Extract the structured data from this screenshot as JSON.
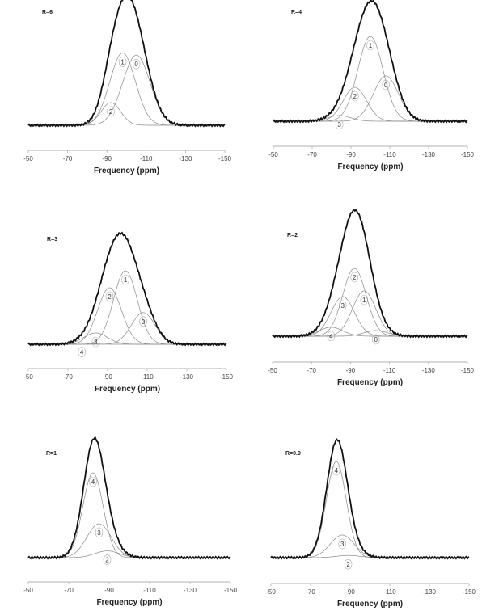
{
  "chart_data": [
    {
      "type": "line",
      "title": "R=6",
      "xlabel": "Frequency (ppm)",
      "xticks": [
        -50,
        -70,
        -90,
        -110,
        -130,
        -150
      ],
      "xlim": [
        -50,
        -150
      ],
      "components": [
        {
          "label": "0",
          "center": -105,
          "height": 0.62,
          "width": 7
        },
        {
          "label": "1",
          "center": -98,
          "height": 0.64,
          "width": 6.5
        },
        {
          "label": "2",
          "center": -92,
          "height": 0.2,
          "width": 5
        }
      ]
    },
    {
      "type": "line",
      "title": "R=4",
      "xlabel": "Frequency (ppm)",
      "xticks": [
        -50,
        -70,
        -90,
        -110,
        -130,
        -150
      ],
      "xlim": [
        -50,
        -150
      ],
      "components": [
        {
          "label": "0",
          "center": -108,
          "height": 0.4,
          "width": 6.5
        },
        {
          "label": "1",
          "center": -100,
          "height": 0.75,
          "width": 6.5
        },
        {
          "label": "2",
          "center": -92,
          "height": 0.3,
          "width": 6
        },
        {
          "label": "3",
          "center": -84,
          "height": 0.05,
          "width": 6
        }
      ]
    },
    {
      "type": "line",
      "title": "R=3",
      "xlabel": "Frequency (ppm)",
      "xticks": [
        -50,
        -70,
        -90,
        -110,
        -130,
        -150
      ],
      "xlim": [
        -50,
        -150
      ],
      "components": [
        {
          "label": "0",
          "center": -108,
          "height": 0.28,
          "width": 6
        },
        {
          "label": "1",
          "center": -99,
          "height": 0.65,
          "width": 6
        },
        {
          "label": "2",
          "center": -91,
          "height": 0.5,
          "width": 6
        },
        {
          "label": "3",
          "center": -84,
          "height": 0.1,
          "width": 6
        },
        {
          "label": "4",
          "center": -77,
          "height": 0.01,
          "width": 5
        }
      ]
    },
    {
      "type": "line",
      "title": "R=2",
      "xlabel": "Frequency (ppm)",
      "xticks": [
        -50,
        -70,
        -90,
        -110,
        -130,
        -150
      ],
      "xlim": [
        -50,
        -150
      ],
      "components": [
        {
          "label": "0",
          "center": -103,
          "height": 0.05,
          "width": 6
        },
        {
          "label": "1",
          "center": -97,
          "height": 0.4,
          "width": 6
        },
        {
          "label": "2",
          "center": -92,
          "height": 0.6,
          "width": 6
        },
        {
          "label": "3",
          "center": -86,
          "height": 0.35,
          "width": 6
        },
        {
          "label": "4",
          "center": -80,
          "height": 0.08,
          "width": 6
        }
      ]
    },
    {
      "type": "line",
      "title": "R=1",
      "xlabel": "Frequency (ppm)",
      "xticks": [
        -50,
        -70,
        -90,
        -110,
        -130,
        -150
      ],
      "xlim": [
        -50,
        -150
      ],
      "components": [
        {
          "label": "4",
          "center": -82,
          "height": 0.75,
          "width": 5
        },
        {
          "label": "3",
          "center": -85,
          "height": 0.3,
          "width": 6
        },
        {
          "label": "2",
          "center": -89,
          "height": 0.06,
          "width": 6
        }
      ]
    },
    {
      "type": "line",
      "title": "R=0.9",
      "xlabel": "Frequency (ppm)",
      "xticks": [
        -50,
        -70,
        -90,
        -110,
        -130,
        -150
      ],
      "xlim": [
        -50,
        -150
      ],
      "components": [
        {
          "label": "4",
          "center": -83,
          "height": 0.85,
          "width": 5
        },
        {
          "label": "3",
          "center": -86,
          "height": 0.2,
          "width": 6
        },
        {
          "label": "2",
          "center": -89,
          "height": 0.02,
          "width": 6
        }
      ]
    }
  ]
}
